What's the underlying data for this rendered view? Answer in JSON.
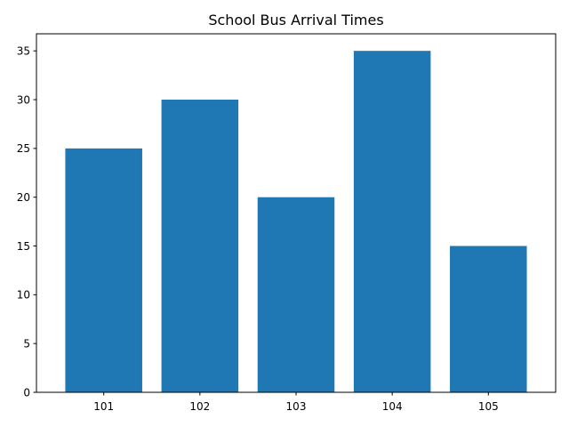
{
  "chart_data": {
    "type": "bar",
    "title": "School Bus Arrival Times",
    "xlabel": "",
    "ylabel": "",
    "categories": [
      "101",
      "102",
      "103",
      "104",
      "105"
    ],
    "values": [
      25,
      30,
      20,
      35,
      15
    ],
    "ylim": [
      0,
      36.75
    ],
    "yticks": [
      0,
      5,
      10,
      15,
      20,
      25,
      30,
      35
    ],
    "grid": false,
    "legend": "none",
    "bar_color": "#1f77b4"
  }
}
